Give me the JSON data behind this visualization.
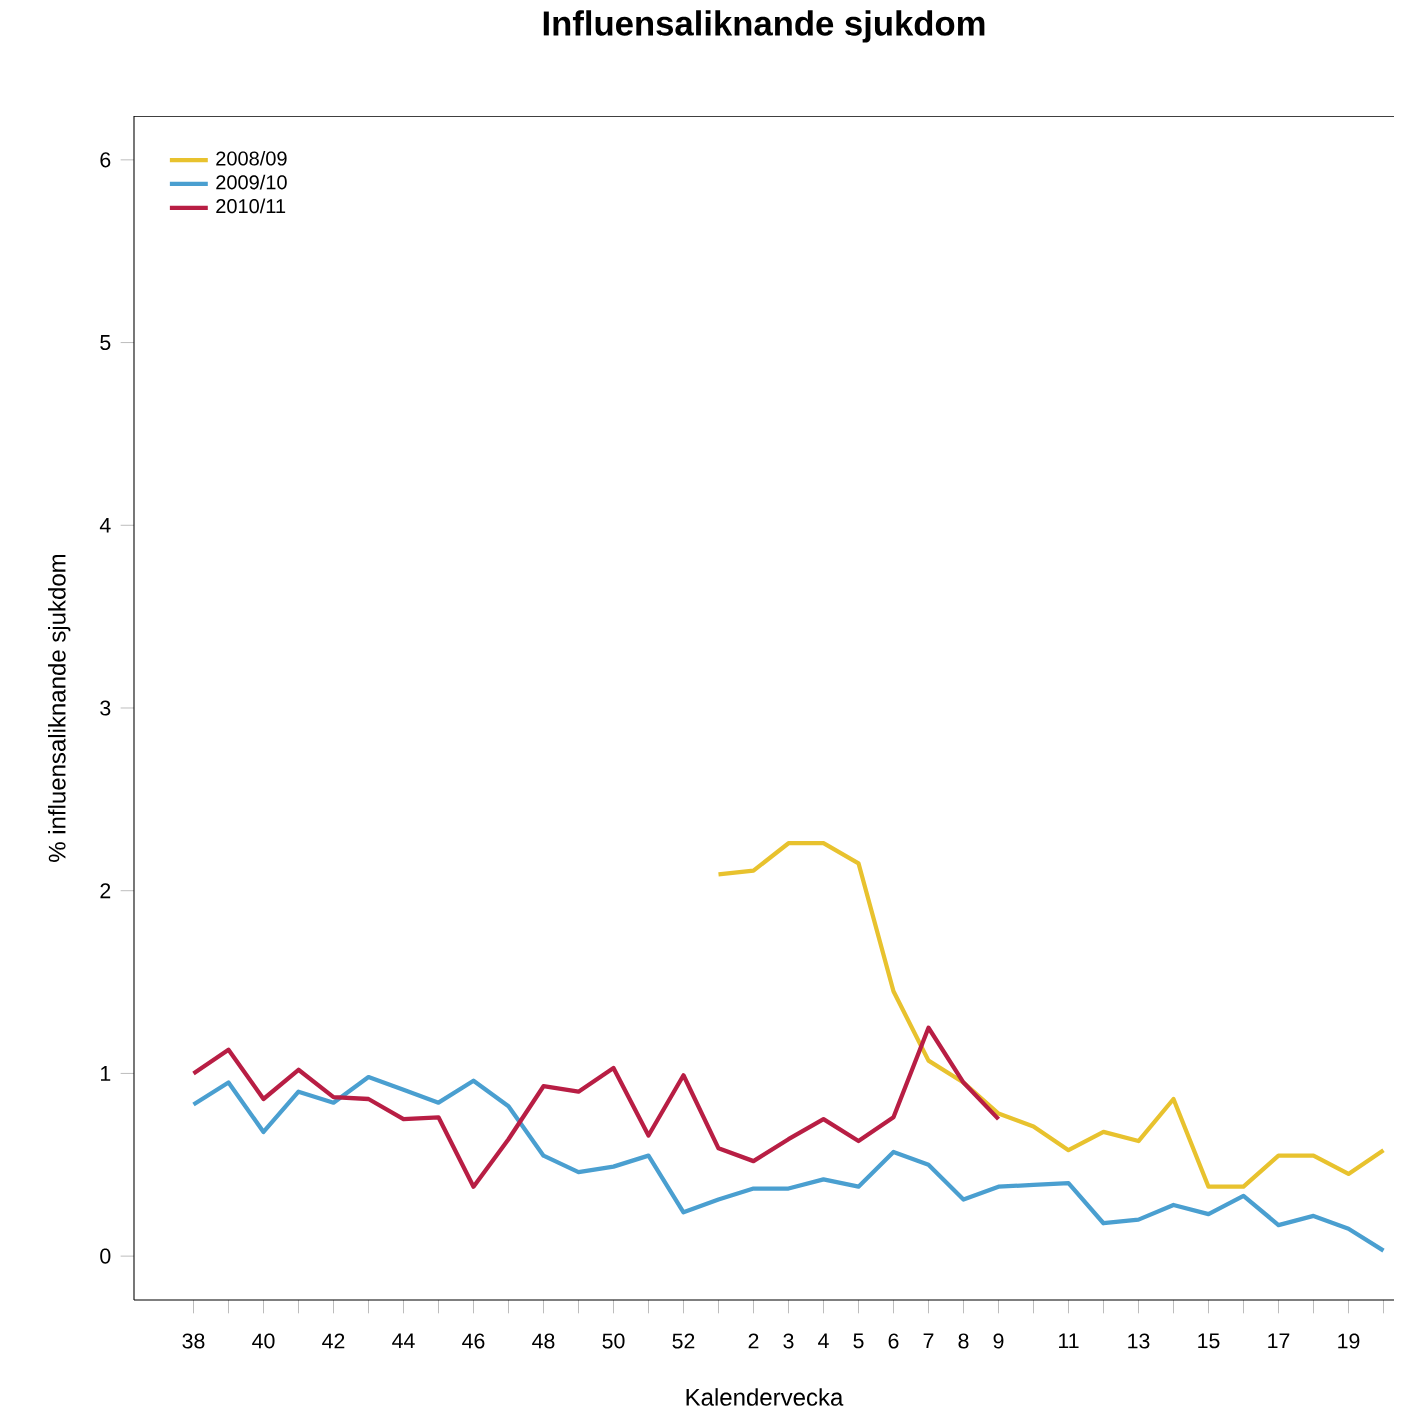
{
  "chart_data": {
    "type": "line",
    "title": "Influensaliknande sjukdom",
    "xlabel": "Kalendervecka",
    "ylabel": "% influensaliknande sjukdom",
    "categories": [
      "38",
      null,
      "40",
      null,
      "42",
      null,
      "44",
      null,
      "46",
      null,
      "48",
      null,
      "50",
      null,
      "52",
      null,
      "2",
      "3",
      "4",
      "5",
      "6",
      "7",
      "8",
      "9",
      null,
      "11",
      null,
      "13",
      null,
      "15",
      null,
      "17",
      null,
      "19",
      null
    ],
    "series": [
      {
        "name": "2008/09",
        "color": "#e8c22e",
        "values": [
          null,
          null,
          null,
          null,
          null,
          null,
          null,
          null,
          null,
          null,
          null,
          null,
          null,
          null,
          null,
          2.09,
          2.11,
          2.26,
          2.26,
          2.15,
          1.45,
          1.07,
          0.95,
          0.78,
          0.71,
          0.58,
          0.68,
          0.63,
          0.86,
          0.38,
          0.38,
          0.55,
          0.55,
          0.45,
          0.58
        ]
      },
      {
        "name": "2009/10",
        "color": "#4a9fd0",
        "values": [
          0.83,
          0.95,
          0.68,
          0.9,
          0.84,
          0.98,
          0.91,
          0.84,
          0.96,
          0.82,
          0.55,
          0.46,
          0.49,
          0.55,
          0.24,
          0.31,
          0.37,
          0.37,
          0.42,
          0.38,
          0.57,
          0.5,
          0.31,
          0.38,
          0.39,
          0.4,
          0.18,
          0.2,
          0.28,
          0.23,
          0.33,
          0.17,
          0.22,
          0.15,
          0.03
        ]
      },
      {
        "name": "2010/11",
        "color": "#b81e44",
        "values": [
          1.0,
          1.13,
          0.86,
          1.02,
          0.87,
          0.86,
          0.75,
          0.76,
          0.38,
          0.64,
          0.93,
          0.9,
          1.03,
          0.66,
          0.99,
          0.59,
          0.52,
          0.64,
          0.75,
          0.63,
          0.76,
          1.25,
          0.95,
          0.75,
          null,
          null,
          null,
          null,
          null,
          null,
          null,
          null,
          null,
          null,
          null
        ]
      }
    ],
    "ylim": [
      -0.24,
      6.24
    ],
    "yticks": [
      0,
      1,
      2,
      3,
      4,
      5,
      6
    ],
    "legend": "top left",
    "grid": false,
    "marker": "none",
    "line_style": "solid"
  }
}
